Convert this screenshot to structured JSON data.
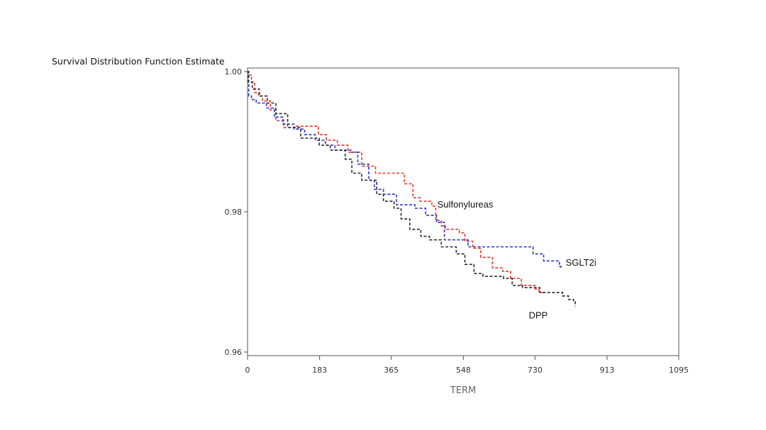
{
  "chart_data": {
    "type": "line",
    "title": "",
    "ylabel": "Survival Distribution Function Estimate",
    "xlabel": "TERM",
    "xlim": [
      0,
      1095
    ],
    "ylim": [
      0.96,
      1.0
    ],
    "x_ticks": [
      0,
      183,
      365,
      548,
      730,
      913,
      1095
    ],
    "x_tick_labels": [
      "0",
      "183",
      "365",
      "548",
      "730",
      "913",
      "1095"
    ],
    "y_ticks": [
      0.96,
      0.98,
      1.0
    ],
    "y_tick_labels": [
      "0.96",
      "0.98",
      "1.00"
    ],
    "grid": false,
    "legend": "none",
    "series": [
      {
        "name": "Sulfonylureas",
        "color": "#e23a2a",
        "label_at": [
          482,
          0.9806
        ],
        "points": [
          [
            0,
            1.0
          ],
          [
            3,
            0.9995
          ],
          [
            10,
            0.9985
          ],
          [
            18,
            0.997
          ],
          [
            28,
            0.9965
          ],
          [
            38,
            0.9958
          ],
          [
            58,
            0.9945
          ],
          [
            72,
            0.993
          ],
          [
            92,
            0.992
          ],
          [
            120,
            0.9922
          ],
          [
            160,
            0.9922
          ],
          [
            180,
            0.991
          ],
          [
            200,
            0.9902
          ],
          [
            228,
            0.9895
          ],
          [
            255,
            0.9885
          ],
          [
            290,
            0.9865
          ],
          [
            325,
            0.9855
          ],
          [
            378,
            0.9855
          ],
          [
            398,
            0.984
          ],
          [
            420,
            0.982
          ],
          [
            438,
            0.9815
          ],
          [
            468,
            0.9808
          ],
          [
            478,
            0.9788
          ],
          [
            492,
            0.978
          ],
          [
            502,
            0.9775
          ],
          [
            538,
            0.977
          ],
          [
            552,
            0.9758
          ],
          [
            572,
            0.9748
          ],
          [
            592,
            0.9735
          ],
          [
            622,
            0.972
          ],
          [
            648,
            0.9715
          ],
          [
            668,
            0.9705
          ],
          [
            695,
            0.9695
          ],
          [
            730,
            0.969
          ],
          [
            740,
            0.9685
          ],
          [
            756,
            0.9685
          ]
        ]
      },
      {
        "name": "SGLT2i",
        "color": "#2f35c8",
        "label_at": [
          808,
          0.9723
        ],
        "points": [
          [
            0,
            1.0
          ],
          [
            3,
            0.9965
          ],
          [
            10,
            0.996
          ],
          [
            22,
            0.9955
          ],
          [
            48,
            0.9948
          ],
          [
            68,
            0.9935
          ],
          [
            90,
            0.9925
          ],
          [
            118,
            0.9918
          ],
          [
            145,
            0.991
          ],
          [
            172,
            0.9902
          ],
          [
            198,
            0.9895
          ],
          [
            222,
            0.9888
          ],
          [
            265,
            0.9885
          ],
          [
            280,
            0.9868
          ],
          [
            308,
            0.9845
          ],
          [
            322,
            0.9832
          ],
          [
            345,
            0.9825
          ],
          [
            378,
            0.981
          ],
          [
            425,
            0.9805
          ],
          [
            452,
            0.9795
          ],
          [
            480,
            0.9785
          ],
          [
            500,
            0.976
          ],
          [
            560,
            0.975
          ],
          [
            660,
            0.975
          ],
          [
            710,
            0.975
          ],
          [
            725,
            0.974
          ],
          [
            752,
            0.973
          ],
          [
            792,
            0.9722
          ],
          [
            796,
            0.9718
          ]
        ]
      },
      {
        "name": "DPP",
        "color": "#2b2b2b",
        "label_at": [
          714,
          0.9648
        ],
        "points": [
          [
            0,
            1.0
          ],
          [
            2,
            0.9985
          ],
          [
            12,
            0.9975
          ],
          [
            30,
            0.9965
          ],
          [
            50,
            0.9955
          ],
          [
            72,
            0.994
          ],
          [
            102,
            0.992
          ],
          [
            135,
            0.9905
          ],
          [
            165,
            0.9905
          ],
          [
            182,
            0.9895
          ],
          [
            210,
            0.9888
          ],
          [
            248,
            0.9875
          ],
          [
            265,
            0.9855
          ],
          [
            290,
            0.9845
          ],
          [
            328,
            0.9825
          ],
          [
            345,
            0.9815
          ],
          [
            372,
            0.9805
          ],
          [
            390,
            0.979
          ],
          [
            412,
            0.9775
          ],
          [
            440,
            0.9765
          ],
          [
            462,
            0.976
          ],
          [
            492,
            0.975
          ],
          [
            530,
            0.974
          ],
          [
            552,
            0.9725
          ],
          [
            575,
            0.9712
          ],
          [
            598,
            0.9708
          ],
          [
            650,
            0.9705
          ],
          [
            672,
            0.9695
          ],
          [
            698,
            0.9692
          ],
          [
            718,
            0.9692
          ],
          [
            732,
            0.9692
          ],
          [
            742,
            0.9685
          ],
          [
            790,
            0.9685
          ],
          [
            800,
            0.968
          ],
          [
            815,
            0.9675
          ],
          [
            828,
            0.9672
          ],
          [
            832,
            0.9665
          ]
        ]
      }
    ]
  }
}
